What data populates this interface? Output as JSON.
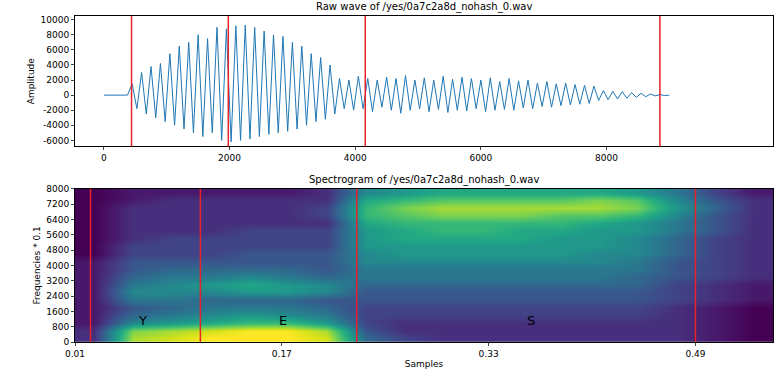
{
  "chart_data": [
    {
      "type": "line",
      "title": "Raw wave of /yes/0a7c2a8d_nohash_0.wav",
      "y_label": "Amplitude",
      "color": "#1f77b4",
      "x": [
        0,
        75,
        150,
        225,
        300,
        375,
        450,
        525,
        600,
        675,
        750,
        825,
        900,
        975,
        1050,
        1125,
        1200,
        1275,
        1350,
        1425,
        1500,
        1575,
        1650,
        1725,
        1800,
        1875,
        1950,
        2025,
        2100,
        2175,
        2250,
        2325,
        2400,
        2475,
        2550,
        2625,
        2700,
        2775,
        2850,
        2925,
        3000,
        3075,
        3150,
        3225,
        3300,
        3375,
        3450,
        3525,
        3600,
        3675,
        3750,
        3825,
        3900,
        3975,
        4050,
        4125,
        4200,
        4275,
        4350,
        4425,
        4500,
        4575,
        4650,
        4725,
        4800,
        4875,
        4950,
        5025,
        5100,
        5175,
        5250,
        5325,
        5400,
        5475,
        5550,
        5625,
        5700,
        5775,
        5850,
        5925,
        6000,
        6075,
        6150,
        6225,
        6300,
        6375,
        6450,
        6525,
        6600,
        6675,
        6750,
        6825,
        6900,
        6975,
        7050,
        7125,
        7200,
        7275,
        7350,
        7425,
        7500,
        7575,
        7650,
        7725,
        7800,
        7875,
        7950,
        8025,
        8100,
        8175,
        8250,
        8325,
        8400,
        8475,
        8550,
        8625,
        8700,
        8775,
        8850,
        8925,
        9000
      ],
      "values": [
        0,
        0,
        0,
        0,
        0,
        0,
        1500,
        -1800,
        3000,
        -2500,
        3800,
        -3000,
        4200,
        -3500,
        5500,
        -4000,
        6500,
        -4500,
        7000,
        -5000,
        8000,
        -5500,
        7500,
        -5000,
        9000,
        -6000,
        8800,
        -6200,
        9200,
        -6000,
        9300,
        -5800,
        9000,
        -5500,
        8500,
        -5200,
        8000,
        -5000,
        7800,
        -4800,
        7000,
        -4500,
        6500,
        -4000,
        5500,
        -3500,
        5000,
        -3200,
        4000,
        -2500,
        2200,
        -1800,
        2000,
        -2000,
        2500,
        -1800,
        2200,
        -2200,
        2000,
        -1600,
        2400,
        -2000,
        2200,
        -2400,
        2600,
        -2000,
        2000,
        -1800,
        2300,
        -2200,
        2000,
        -1900,
        2500,
        -2300,
        2100,
        -2000,
        2400,
        -2100,
        2200,
        -1800,
        2000,
        -2200,
        2300,
        -2000,
        1800,
        -1900,
        2200,
        -2000,
        1900,
        -1700,
        2000,
        -1800,
        1600,
        -1500,
        1800,
        -1600,
        1500,
        -1400,
        1600,
        -1300,
        1400,
        -1200,
        1300,
        -1100,
        1200,
        -700,
        600,
        -600,
        500,
        -500,
        450,
        -400,
        350,
        -300,
        250,
        -200,
        150,
        -100,
        80,
        -50,
        0
      ],
      "xlim": [
        -460,
        10650
      ],
      "ylim": [
        -6800,
        10500
      ],
      "xticks": [
        0,
        2000,
        4000,
        6000,
        8000
      ],
      "yticks": [
        -6000,
        -4000,
        -2000,
        0,
        2000,
        4000,
        6000,
        8000,
        10000
      ],
      "boundaries": {
        "x": [
          440,
          1980,
          4160,
          8850
        ],
        "color": "#e8212a"
      }
    },
    {
      "type": "heatmap",
      "title": "Spectrogram of /yes/0a7c2a8d_nohash_0.wav",
      "x_label": "Samples",
      "y_label": "Frequencies * 0.1",
      "color": "viridis",
      "x": [
        0.025,
        0.055,
        0.085,
        0.115,
        0.145,
        0.175,
        0.205,
        0.235,
        0.265,
        0.295,
        0.325,
        0.355,
        0.385,
        0.415,
        0.445,
        0.475,
        0.505,
        0.535
      ],
      "y": [
        200,
        600,
        1000,
        1400,
        1800,
        2200,
        2600,
        3000,
        3400,
        3800,
        4200,
        4600,
        5000,
        5400,
        5800,
        6200,
        6600,
        7000,
        7400,
        7800
      ],
      "cells": [
        [
          0.3,
          0.85,
          0.9,
          0.95,
          0.95,
          0.95,
          0.9,
          0.45,
          0.35,
          0.3,
          0.3,
          0.3,
          0.3,
          0.3,
          0.3,
          0.3,
          0.25,
          0.2
        ],
        [
          0.3,
          0.8,
          0.85,
          0.9,
          0.95,
          0.95,
          0.85,
          0.4,
          0.3,
          0.3,
          0.3,
          0.3,
          0.3,
          0.3,
          0.3,
          0.3,
          0.25,
          0.2
        ],
        [
          0.25,
          0.55,
          0.6,
          0.65,
          0.7,
          0.7,
          0.6,
          0.35,
          0.3,
          0.3,
          0.3,
          0.3,
          0.3,
          0.3,
          0.3,
          0.3,
          0.25,
          0.2
        ],
        [
          0.25,
          0.45,
          0.5,
          0.55,
          0.6,
          0.55,
          0.5,
          0.35,
          0.35,
          0.35,
          0.35,
          0.35,
          0.35,
          0.35,
          0.35,
          0.3,
          0.25,
          0.2
        ],
        [
          0.25,
          0.4,
          0.45,
          0.5,
          0.5,
          0.5,
          0.45,
          0.35,
          0.35,
          0.35,
          0.35,
          0.35,
          0.35,
          0.35,
          0.35,
          0.3,
          0.25,
          0.2
        ],
        [
          0.25,
          0.5,
          0.5,
          0.45,
          0.45,
          0.45,
          0.4,
          0.4,
          0.4,
          0.4,
          0.4,
          0.4,
          0.4,
          0.4,
          0.4,
          0.35,
          0.3,
          0.25
        ],
        [
          0.25,
          0.55,
          0.55,
          0.55,
          0.6,
          0.6,
          0.55,
          0.4,
          0.4,
          0.4,
          0.4,
          0.4,
          0.4,
          0.4,
          0.4,
          0.35,
          0.3,
          0.25
        ],
        [
          0.25,
          0.5,
          0.55,
          0.6,
          0.65,
          0.6,
          0.55,
          0.45,
          0.45,
          0.45,
          0.45,
          0.45,
          0.45,
          0.45,
          0.45,
          0.35,
          0.3,
          0.25
        ],
        [
          0.25,
          0.45,
          0.5,
          0.5,
          0.55,
          0.5,
          0.45,
          0.5,
          0.5,
          0.5,
          0.5,
          0.5,
          0.5,
          0.5,
          0.45,
          0.4,
          0.35,
          0.3
        ],
        [
          0.25,
          0.4,
          0.45,
          0.45,
          0.45,
          0.45,
          0.4,
          0.5,
          0.5,
          0.5,
          0.5,
          0.5,
          0.5,
          0.5,
          0.5,
          0.4,
          0.35,
          0.3
        ],
        [
          0.25,
          0.4,
          0.4,
          0.4,
          0.4,
          0.4,
          0.4,
          0.55,
          0.55,
          0.55,
          0.55,
          0.55,
          0.55,
          0.55,
          0.5,
          0.4,
          0.35,
          0.3
        ],
        [
          0.2,
          0.35,
          0.35,
          0.35,
          0.4,
          0.4,
          0.4,
          0.55,
          0.6,
          0.6,
          0.6,
          0.6,
          0.6,
          0.55,
          0.55,
          0.45,
          0.35,
          0.3
        ],
        [
          0.2,
          0.35,
          0.35,
          0.35,
          0.35,
          0.35,
          0.35,
          0.6,
          0.6,
          0.6,
          0.6,
          0.6,
          0.6,
          0.6,
          0.55,
          0.45,
          0.35,
          0.3
        ],
        [
          0.2,
          0.3,
          0.35,
          0.35,
          0.35,
          0.35,
          0.35,
          0.6,
          0.65,
          0.65,
          0.65,
          0.65,
          0.6,
          0.6,
          0.55,
          0.45,
          0.35,
          0.3
        ],
        [
          0.2,
          0.3,
          0.3,
          0.3,
          0.35,
          0.35,
          0.35,
          0.6,
          0.65,
          0.7,
          0.7,
          0.65,
          0.65,
          0.6,
          0.6,
          0.5,
          0.4,
          0.3
        ],
        [
          0.2,
          0.3,
          0.3,
          0.3,
          0.3,
          0.3,
          0.3,
          0.65,
          0.7,
          0.7,
          0.7,
          0.7,
          0.7,
          0.65,
          0.6,
          0.5,
          0.4,
          0.3
        ],
        [
          0.2,
          0.3,
          0.3,
          0.3,
          0.3,
          0.3,
          0.35,
          0.7,
          0.75,
          0.8,
          0.8,
          0.8,
          0.75,
          0.75,
          0.7,
          0.55,
          0.4,
          0.3
        ],
        [
          0.2,
          0.3,
          0.3,
          0.3,
          0.3,
          0.3,
          0.35,
          0.7,
          0.8,
          0.85,
          0.85,
          0.85,
          0.85,
          0.85,
          0.8,
          0.6,
          0.45,
          0.3
        ],
        [
          0.2,
          0.25,
          0.3,
          0.3,
          0.3,
          0.3,
          0.3,
          0.65,
          0.7,
          0.75,
          0.75,
          0.75,
          0.75,
          0.8,
          0.75,
          0.55,
          0.4,
          0.3
        ],
        [
          0.2,
          0.25,
          0.25,
          0.25,
          0.25,
          0.25,
          0.3,
          0.55,
          0.6,
          0.65,
          0.65,
          0.65,
          0.65,
          0.65,
          0.6,
          0.5,
          0.35,
          0.25
        ]
      ],
      "xlim": [
        0.01,
        0.55
      ],
      "ylim": [
        0,
        8000
      ],
      "xticks": [
        0.01,
        0.17,
        0.33,
        0.49
      ],
      "yticks": [
        0,
        800,
        1600,
        2400,
        3200,
        4000,
        4800,
        5600,
        6400,
        7200,
        8000
      ],
      "boundaries": {
        "x": [
          0.022,
          0.107,
          0.228,
          0.49
        ],
        "color": "#e8212a"
      },
      "annotations": [
        {
          "text": "Y",
          "x": 0.062,
          "y": 1100
        },
        {
          "text": "E",
          "x": 0.171,
          "y": 1100
        },
        {
          "text": "S",
          "x": 0.363,
          "y": 1100
        }
      ]
    }
  ]
}
